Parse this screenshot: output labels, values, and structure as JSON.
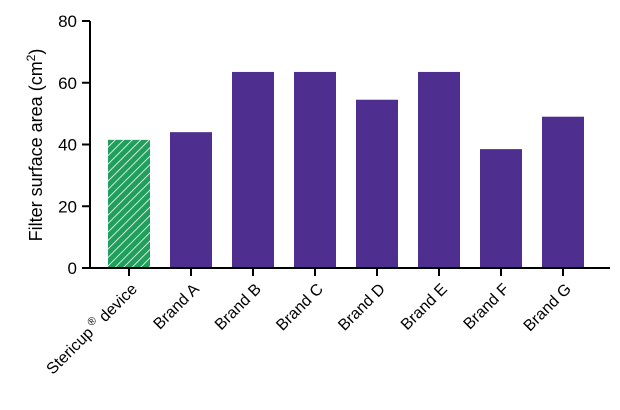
{
  "chart_data": {
    "type": "bar",
    "ylabel": "Filter surface area (cm",
    "ylabel_sup": "2",
    "ylabel_close": ")",
    "ylim": [
      0,
      80
    ],
    "yticks": [
      "0",
      "20",
      "40",
      "60",
      "80"
    ],
    "ytick_values": [
      0,
      20,
      40,
      60,
      80
    ],
    "categories": [
      "Stericup",
      "Brand A",
      "Brand B",
      "Brand C",
      "Brand D",
      "Brand E",
      "Brand F",
      "Brand G"
    ],
    "category_suffix": [
      " device",
      "",
      "",
      "",
      "",
      "",
      "",
      ""
    ],
    "category_sup": [
      "®",
      "",
      "",
      "",
      "",
      "",
      "",
      ""
    ],
    "values": [
      41.5,
      44,
      63.5,
      63.5,
      54.5,
      63.5,
      38.5,
      49
    ],
    "colors": {
      "highlight": "#1f9e5c",
      "bar": "#4e2e8f"
    },
    "highlight_index": 0,
    "grid": false
  }
}
